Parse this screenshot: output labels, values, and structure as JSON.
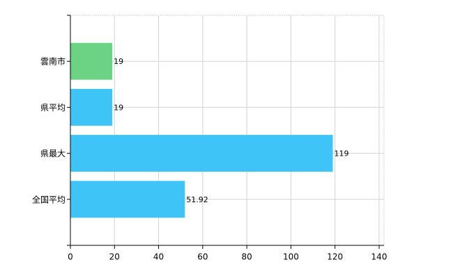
{
  "chart_data": {
    "type": "hbar",
    "categories": [
      "雲南市",
      "県平均",
      "県最大",
      "全国平均"
    ],
    "values": [
      19,
      19,
      119,
      51.92
    ],
    "colors": [
      "#6cd384",
      "#3ec4f6",
      "#3ec4f6",
      "#3ec4f6"
    ],
    "xlim": [
      0,
      140
    ],
    "xticks": [
      0,
      20,
      40,
      60,
      80,
      100,
      120,
      140
    ],
    "grid": true
  }
}
